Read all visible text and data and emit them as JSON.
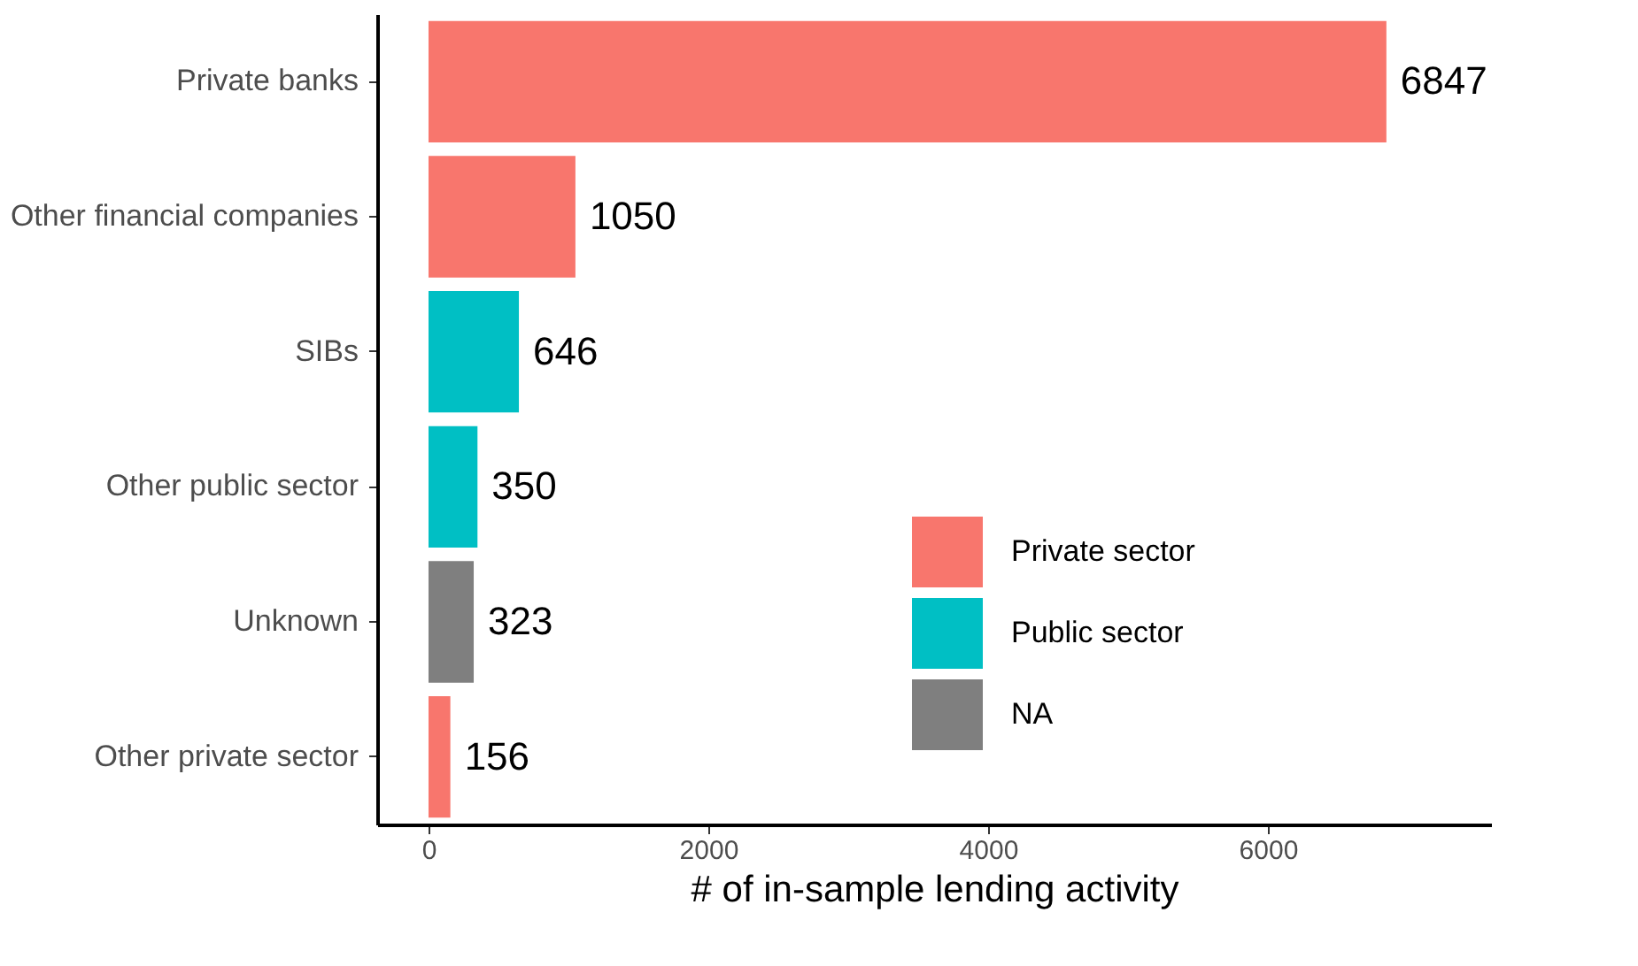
{
  "chart_data": {
    "type": "bar",
    "orientation": "horizontal",
    "xlabel": "# of in-sample lending activity",
    "categories": [
      "Private banks",
      "Other financial companies",
      "SIBs",
      "Other public sector",
      "Unknown",
      "Other private sector"
    ],
    "series": [
      {
        "name": "Private sector",
        "color": "#f8766d",
        "values": [
          6847,
          1050,
          null,
          null,
          null,
          156
        ]
      },
      {
        "name": "Public sector",
        "color": "#00bfc4",
        "values": [
          null,
          null,
          646,
          350,
          null,
          null
        ]
      },
      {
        "name": "NA",
        "color": "#7f7f7f",
        "values": [
          null,
          null,
          null,
          null,
          323,
          null
        ]
      }
    ],
    "xlim": [
      -367,
      7595
    ],
    "xticks": [
      0,
      2000,
      4000,
      6000
    ],
    "data_labels": true,
    "grid": false,
    "legend": "right"
  }
}
